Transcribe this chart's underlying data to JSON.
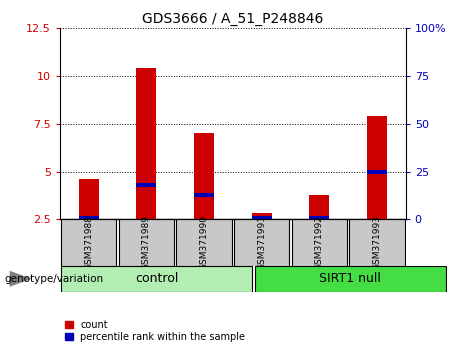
{
  "title": "GDS3666 / A_51_P248846",
  "samples": [
    "GSM371988",
    "GSM371989",
    "GSM371990",
    "GSM371991",
    "GSM371992",
    "GSM371993"
  ],
  "red_values": [
    4.6,
    10.4,
    7.0,
    2.85,
    3.8,
    7.9
  ],
  "blue_values": [
    2.6,
    4.3,
    3.8,
    2.6,
    2.6,
    5.0
  ],
  "ylim_left": [
    2.5,
    12.5
  ],
  "ylim_right": [
    0,
    100
  ],
  "yticks_left": [
    2.5,
    5.0,
    7.5,
    10.0,
    12.5
  ],
  "ytick_labels_left": [
    "2.5",
    "5",
    "7.5",
    "10",
    "12.5"
  ],
  "yticks_right": [
    0,
    25,
    50,
    75,
    100
  ],
  "ytick_labels_right": [
    "0",
    "25",
    "50",
    "75",
    "100%"
  ],
  "groups": [
    {
      "label": "control",
      "indices": [
        0,
        1,
        2
      ],
      "color": "#B2EEB2"
    },
    {
      "label": "SIRT1 null",
      "indices": [
        3,
        4,
        5
      ],
      "color": "#44DD44"
    }
  ],
  "group_label": "genotype/variation",
  "legend_count": "count",
  "legend_pct": "percentile rank within the sample",
  "red_color": "#CC0000",
  "blue_color": "#0000BB",
  "bar_width": 0.35,
  "bg_label": "#C8C8C8",
  "title_fontsize": 10
}
